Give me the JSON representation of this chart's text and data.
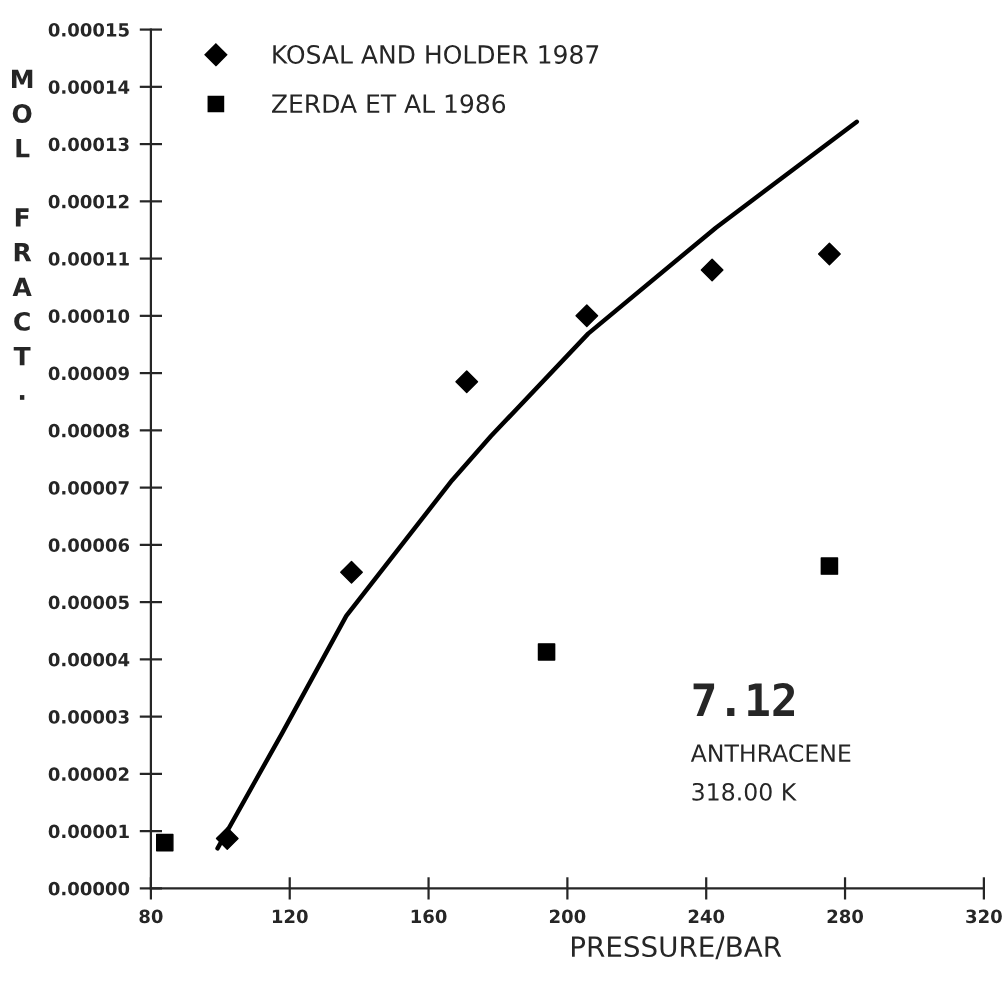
{
  "chart_data": {
    "type": "scatter",
    "xlabel": "PRESSURE/BAR",
    "ylabel": "MOL FRACT.",
    "series": [
      {
        "name": "KOSAL AND HOLDER 1987",
        "marker": "diamond",
        "color": "#000000",
        "x": [
          102,
          137.8,
          171,
          205.6,
          241.7,
          275.5
        ],
        "values": [
          8.7e-06,
          5.52e-05,
          8.85e-05,
          0.0001,
          0.000108,
          0.0001108
        ]
      },
      {
        "name": "ZERDA ET AL 1986",
        "marker": "square",
        "color": "#000000",
        "x": [
          84,
          194,
          275.5
        ],
        "values": [
          8e-06,
          4.13e-05,
          5.63e-05
        ]
      },
      {
        "type": "line",
        "marker": "none",
        "color": "#000000",
        "x": [
          99.2,
          117.7,
          136.3,
          166.8,
          178,
          206,
          242.8,
          283.4
        ],
        "values": [
          7e-06,
          2.7e-05,
          4.76e-05,
          7.13e-05,
          7.9e-05,
          9.69e-05,
          0.0001154,
          0.0001339
        ]
      }
    ],
    "xlim": [
      80,
      320
    ],
    "xticks": [
      80,
      120,
      160,
      200,
      240,
      280,
      320
    ],
    "ylim": [
      0,
      0.00015
    ],
    "yticks": [
      {
        "value": 0,
        "label": "0.00000"
      },
      {
        "value": 1e-05,
        "label": "0.00001"
      },
      {
        "value": 2e-05,
        "label": "0.00002"
      },
      {
        "value": 3e-05,
        "label": "0.00003"
      },
      {
        "value": 4e-05,
        "label": "0.00004"
      },
      {
        "value": 5e-05,
        "label": "0.00005"
      },
      {
        "value": 6e-05,
        "label": "0.00006"
      },
      {
        "value": 7e-05,
        "label": "0.00007"
      },
      {
        "value": 8e-05,
        "label": "0.00008"
      },
      {
        "value": 9e-05,
        "label": "0.00009"
      },
      {
        "value": 0.0001,
        "label": "0.00010"
      },
      {
        "value": 0.00011,
        "label": "0.00011"
      },
      {
        "value": 0.00012,
        "label": "0.00012"
      },
      {
        "value": 0.00013,
        "label": "0.00013"
      },
      {
        "value": 0.00014,
        "label": "0.00014"
      },
      {
        "value": 0.00015,
        "label": "0.00015"
      }
    ],
    "annotations": [
      "7.12",
      "ANTHRACENE",
      "318.00 K"
    ],
    "grid": false,
    "legend": "top left"
  }
}
